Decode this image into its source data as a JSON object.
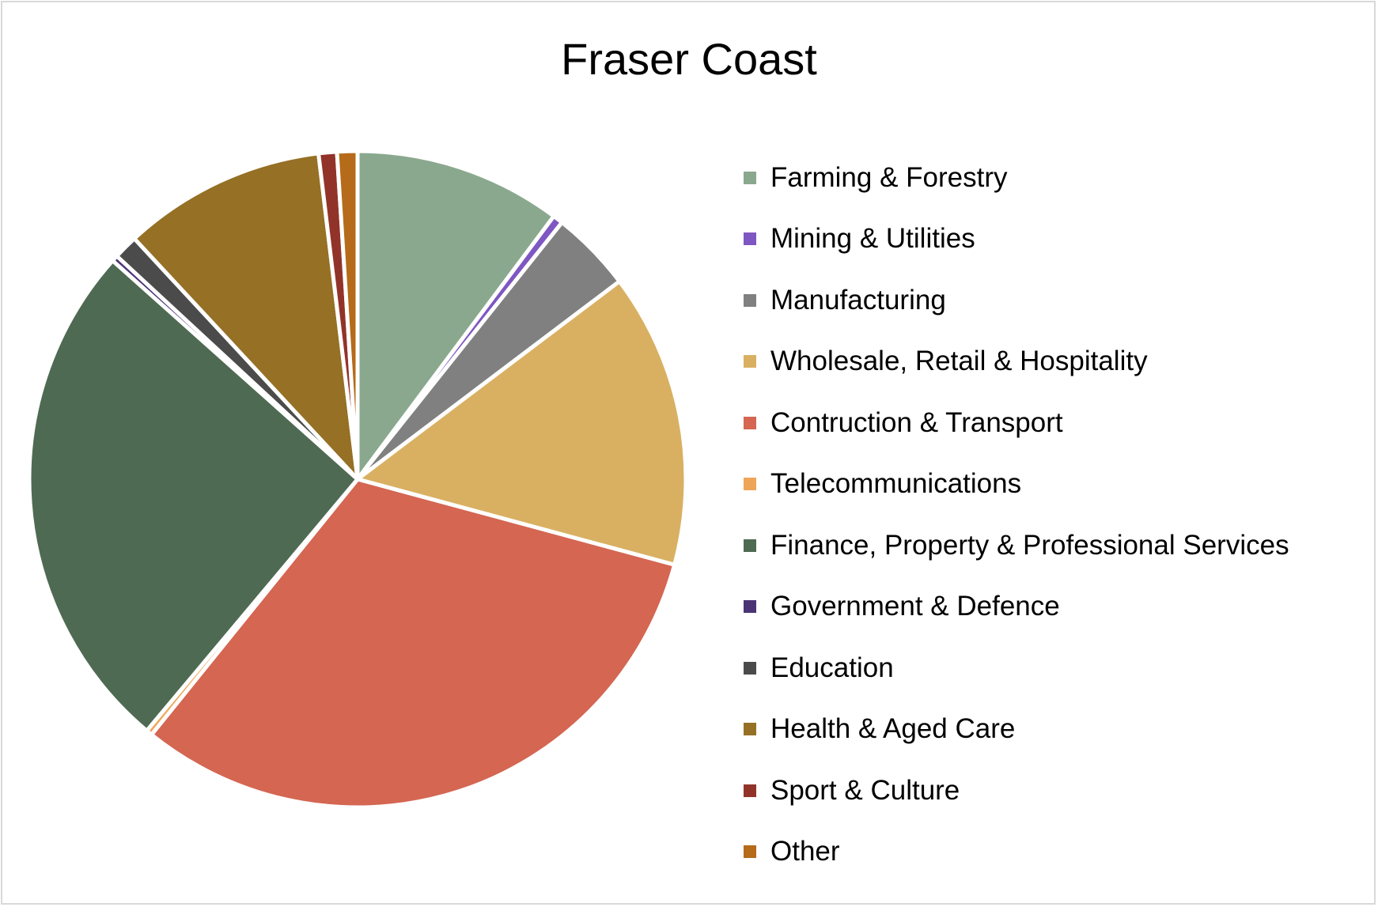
{
  "chart_data": {
    "type": "pie",
    "title": "Fraser Coast",
    "legend_position": "right",
    "slices": [
      {
        "name": "Farming & Forestry",
        "value": 10.2,
        "color": "#8aa88e"
      },
      {
        "name": "Mining & Utilities",
        "value": 0.5,
        "color": "#7e57c2"
      },
      {
        "name": "Manufacturing",
        "value": 4.0,
        "color": "#808080"
      },
      {
        "name": "Wholesale, Retail & Hospitality",
        "value": 14.5,
        "color": "#d9b062"
      },
      {
        "name": "Contruction & Transport",
        "value": 31.6,
        "color": "#d46652"
      },
      {
        "name": "Telecommunications",
        "value": 0.3,
        "color": "#eea558"
      },
      {
        "name": "Finance, Property & Professional Services",
        "value": 25.5,
        "color": "#4f6a52"
      },
      {
        "name": "Government & Defence",
        "value": 0.3,
        "color": "#4a3476"
      },
      {
        "name": "Education",
        "value": 1.2,
        "color": "#4b4b4b"
      },
      {
        "name": "Health & Aged Care",
        "value": 10.0,
        "color": "#957025"
      },
      {
        "name": "Sport & Culture",
        "value": 0.9,
        "color": "#923329"
      },
      {
        "name": "Other",
        "value": 1.0,
        "color": "#b56b19"
      }
    ]
  }
}
